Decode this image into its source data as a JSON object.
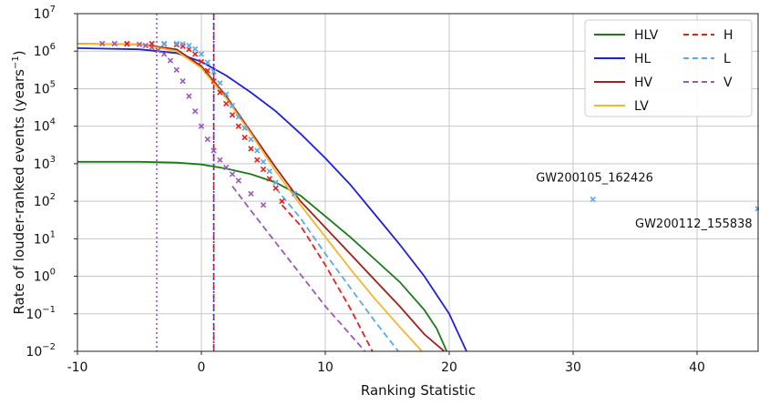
{
  "chart_data": {
    "type": "line",
    "title": "",
    "xlabel": "Ranking Statistic",
    "ylabel_text": "Rate of louder-ranked events (years",
    "ylabel_exp": "−1",
    "ylabel_close": ")",
    "xlim": [
      -10,
      45
    ],
    "ylim_log10": [
      -2,
      7
    ],
    "y_scale": "log",
    "grid": true,
    "legend_position": "top-right",
    "x_ticks": [
      -10,
      0,
      10,
      20,
      30,
      40
    ],
    "x_tick_labels": [
      "-10",
      "0",
      "10",
      "20",
      "30",
      "40"
    ],
    "y_tick_exponents": [
      -2,
      -1,
      0,
      1,
      2,
      3,
      4,
      5,
      6,
      7
    ],
    "y_tick_base": "10",
    "y_tick_exp_labels": [
      "−2",
      "−1",
      "0",
      "1",
      "2",
      "3",
      "4",
      "5",
      "6",
      "7"
    ],
    "vlines": [
      {
        "x": -3.6,
        "color": "#9b59b6",
        "style": "dotted"
      },
      {
        "x": 1.0,
        "color": "#d62728",
        "style": "dashed"
      },
      {
        "x": 1.0,
        "color": "#1f3fbf",
        "style": "dotted"
      }
    ],
    "series": [
      {
        "name": "HLV",
        "color": "#1a7a1a",
        "dash": "solid",
        "x": [
          -10,
          -5,
          -2,
          0,
          2,
          4,
          6,
          8,
          10,
          12,
          14,
          16,
          18,
          19,
          19.8
        ],
        "log10y": [
          3.05,
          3.05,
          3.03,
          2.98,
          2.87,
          2.72,
          2.5,
          2.15,
          1.6,
          1.05,
          0.45,
          -0.15,
          -0.9,
          -1.4,
          -2.0
        ]
      },
      {
        "name": "HL",
        "color": "#1f1fd6",
        "dash": "solid",
        "x": [
          -10,
          -5,
          -2,
          0,
          2,
          4,
          6,
          8,
          10,
          12,
          14,
          16,
          18,
          20,
          21.4
        ],
        "log10y": [
          6.08,
          6.05,
          5.95,
          5.72,
          5.35,
          4.9,
          4.4,
          3.8,
          3.15,
          2.45,
          1.65,
          0.85,
          0.0,
          -1.0,
          -2.0
        ]
      },
      {
        "name": "HV",
        "color": "#a0201c",
        "dash": "solid",
        "x": [
          -10,
          -5,
          -2,
          0,
          2,
          4,
          6,
          8,
          10,
          12,
          14,
          16,
          18,
          19.6
        ],
        "log10y": [
          6.2,
          6.18,
          6.05,
          5.6,
          4.8,
          3.85,
          2.9,
          2.0,
          1.3,
          0.6,
          -0.1,
          -0.8,
          -1.55,
          -2.0
        ]
      },
      {
        "name": "LV",
        "color": "#f2b630",
        "dash": "solid",
        "x": [
          -10,
          -5,
          -2,
          0,
          2,
          4,
          6,
          8,
          10,
          12,
          14,
          16,
          17.8
        ],
        "log10y": [
          6.2,
          6.18,
          6.0,
          5.55,
          4.75,
          3.8,
          2.8,
          1.9,
          1.05,
          0.2,
          -0.6,
          -1.35,
          -2.0
        ]
      },
      {
        "name": "H",
        "color": "#e8201c",
        "dash": "dashed",
        "x": [
          6.5,
          8,
          10,
          12,
          13.8
        ],
        "log10y": [
          1.9,
          1.35,
          0.3,
          -0.85,
          -2.0
        ]
      },
      {
        "name": "L",
        "color": "#5aa9ea",
        "dash": "dashed",
        "x": [
          6.0,
          8,
          10,
          12,
          14,
          15.9
        ],
        "log10y": [
          2.35,
          1.55,
          0.6,
          -0.3,
          -1.2,
          -2.0
        ]
      },
      {
        "name": "V",
        "color": "#9b59b6",
        "dash": "dashed",
        "x": [
          2.5,
          4,
          6,
          8,
          10,
          12,
          13.2
        ],
        "log10y": [
          2.4,
          1.75,
          0.9,
          0.05,
          -0.8,
          -1.55,
          -2.0
        ]
      }
    ],
    "scatter_series": [
      {
        "name": "V triggers",
        "color": "#9b59b6",
        "x": [
          -8,
          -7,
          -6,
          -5,
          -4.5,
          -4,
          -3.5,
          -3,
          -2.5,
          -2,
          -1.5,
          -1,
          -0.5,
          0,
          0.5,
          1,
          1.5,
          2,
          2.5,
          3,
          4,
          5
        ],
        "log10y": [
          6.2,
          6.2,
          6.19,
          6.18,
          6.15,
          6.1,
          6.02,
          5.92,
          5.75,
          5.5,
          5.2,
          4.8,
          4.4,
          4.0,
          3.65,
          3.35,
          3.1,
          2.9,
          2.72,
          2.55,
          2.2,
          1.9
        ]
      },
      {
        "name": "H triggers",
        "color": "#e8201c",
        "x": [
          -6,
          -4,
          -3,
          -2,
          -1.5,
          -1,
          -0.5,
          0,
          0.5,
          1,
          1.5,
          2,
          2.5,
          3,
          3.5,
          4,
          4.5,
          5,
          5.5,
          6,
          6.5
        ],
        "log10y": [
          6.2,
          6.2,
          6.19,
          6.17,
          6.13,
          6.05,
          5.92,
          5.72,
          5.48,
          5.2,
          4.9,
          4.6,
          4.3,
          4.0,
          3.7,
          3.4,
          3.1,
          2.85,
          2.6,
          2.35,
          2.0
        ]
      },
      {
        "name": "L triggers",
        "color": "#5aa9ea",
        "x": [
          -3,
          -2,
          -1.5,
          -1,
          -0.5,
          0,
          0.5,
          1,
          1.5,
          2,
          2.5,
          3,
          3.5,
          4,
          4.5,
          5,
          5.5,
          6,
          7.5,
          31.6,
          44.9
        ],
        "log10y": [
          6.2,
          6.2,
          6.19,
          6.15,
          6.06,
          5.92,
          5.7,
          5.45,
          5.15,
          4.85,
          4.55,
          4.25,
          3.95,
          3.65,
          3.35,
          3.05,
          2.8,
          2.5,
          2.2,
          2.05,
          1.8
        ]
      }
    ],
    "annotations": [
      {
        "text": "GW200105_162426",
        "x": 27.0,
        "log10y": 2.52
      },
      {
        "text": "GW200112_155838",
        "x": 35.0,
        "log10y": 1.3
      }
    ],
    "legend": {
      "entries": [
        {
          "label": "HLV",
          "color": "#1a7a1a",
          "dash": "solid"
        },
        {
          "label": "H",
          "color": "#e8201c",
          "dash": "dashed"
        },
        {
          "label": "HL",
          "color": "#1f1fd6",
          "dash": "solid"
        },
        {
          "label": "L",
          "color": "#5aa9ea",
          "dash": "dashed"
        },
        {
          "label": "HV",
          "color": "#a0201c",
          "dash": "solid"
        },
        {
          "label": "V",
          "color": "#9b59b6",
          "dash": "dashed"
        },
        {
          "label": "LV",
          "color": "#f2b630",
          "dash": "solid"
        }
      ]
    }
  }
}
